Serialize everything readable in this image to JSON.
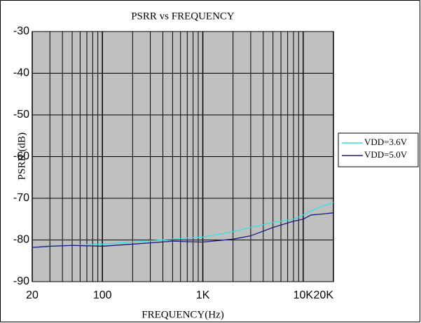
{
  "chart_data": {
    "type": "line",
    "title": "PSRR vs FREQUENCY",
    "x_label": "FREQUENCY(Hz)",
    "y_label": "PSRR (dB)",
    "x": [
      20,
      30,
      50,
      100,
      200,
      500,
      1000,
      2000,
      3000,
      5000,
      8000,
      10000,
      12000,
      15000,
      20000
    ],
    "series": [
      {
        "name": "VDD=3.6V",
        "color": "#33e0e0",
        "values": [
          -81.8,
          -81.5,
          -81.3,
          -81,
          -80.5,
          -79.8,
          -79.3,
          -78,
          -77,
          -75.8,
          -75,
          -74,
          -73,
          -72,
          -71
        ]
      },
      {
        "name": "VDD=5.0V",
        "color": "#1a1a80",
        "values": [
          -81.8,
          -81.5,
          -81.3,
          -81.5,
          -81,
          -80.3,
          -80.5,
          -79.8,
          -79,
          -77,
          -75.5,
          -75,
          -74,
          -73.8,
          -73.5
        ]
      }
    ],
    "xlim": [
      20,
      20000
    ],
    "xscale": "log",
    "xticks": [
      20,
      100,
      {
        "value": 1000,
        "label": "1K"
      },
      {
        "value": 10000,
        "label": "10K"
      },
      {
        "value": 20000,
        "label": "20K"
      }
    ],
    "xminorticks": [
      30,
      40,
      50,
      60,
      70,
      80,
      90,
      200,
      300,
      400,
      500,
      600,
      700,
      800,
      900,
      2000,
      3000,
      4000,
      5000,
      6000,
      7000,
      8000,
      9000
    ],
    "ylim": [
      -90,
      -30
    ],
    "yticks": [
      -30,
      -40,
      -50,
      -60,
      -70,
      -80,
      -90
    ],
    "grid": true,
    "legend": "right"
  }
}
